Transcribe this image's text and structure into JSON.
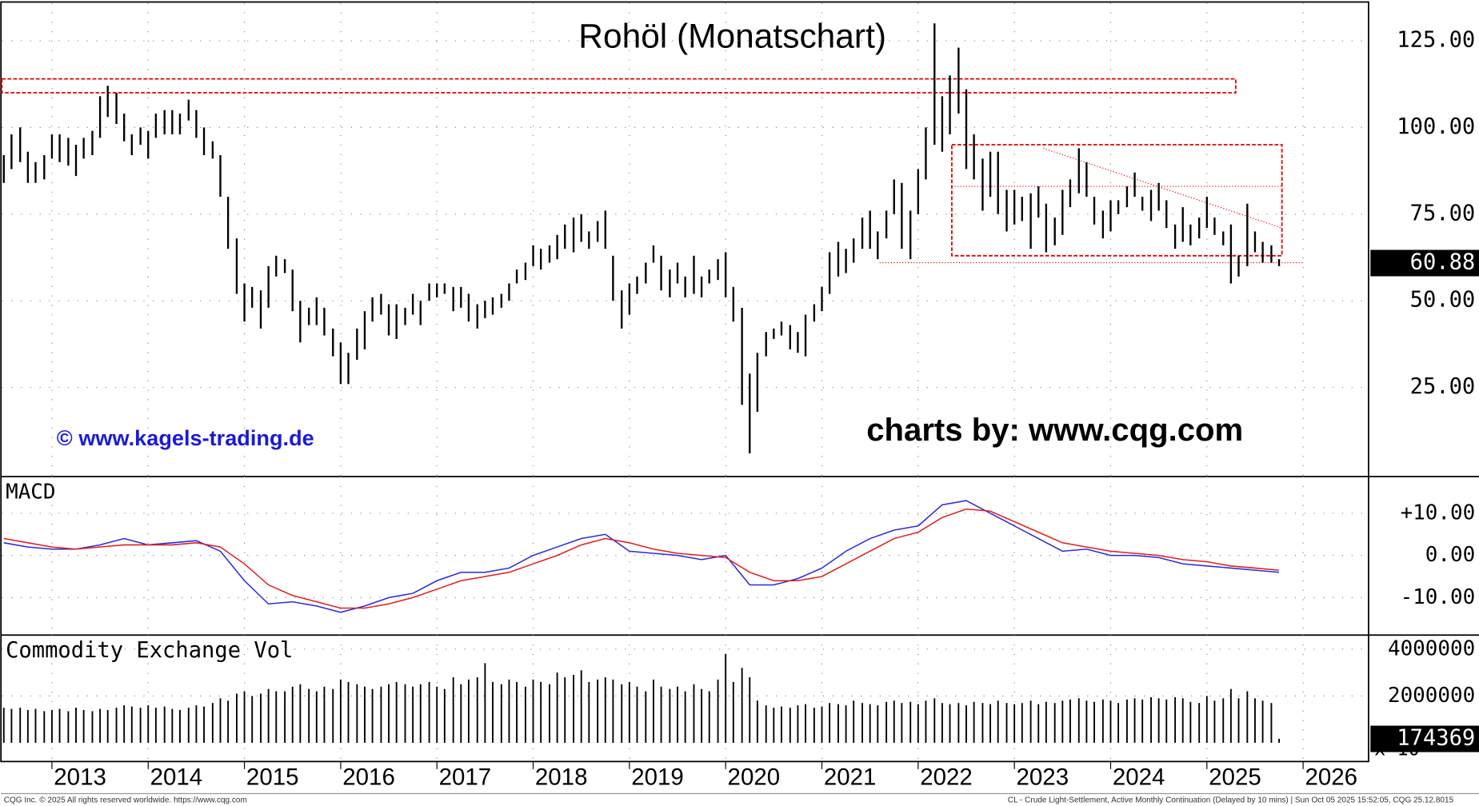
{
  "chart_data": [
    {
      "type": "ohlc",
      "title": "Rohöl (Monatschart)",
      "color": "#000000",
      "watermark": "© www.kagels-trading.de",
      "credit": "charts by: www.cqg.com",
      "xlim": [
        2012.48,
        2026.68
      ],
      "ylim": [
        -0.7,
        135.9
      ],
      "xticks": [
        2013,
        2014,
        2015,
        2016,
        2017,
        2018,
        2019,
        2020,
        2021,
        2022,
        2023,
        2024,
        2025,
        2026
      ],
      "yticks": [
        {
          "value": 25,
          "label": "25.00"
        },
        {
          "value": 50,
          "label": "50.00"
        },
        {
          "value": 75,
          "label": "75.00"
        },
        {
          "value": 100,
          "label": "100.00"
        },
        {
          "value": 125,
          "label": "125.00"
        }
      ],
      "grid": true,
      "last_value": 60.88,
      "zones": [
        {
          "x": [
            2012.48,
            2025.3
          ],
          "y": [
            110,
            114
          ]
        },
        {
          "x": [
            2022.35,
            2025.78
          ],
          "y": [
            63,
            95
          ]
        }
      ],
      "lines": [
        {
          "x": [
            2021.6,
            2026.0
          ],
          "y": [
            61,
            61
          ]
        },
        {
          "x": [
            2022.35,
            2025.78
          ],
          "y": [
            83,
            83
          ]
        },
        {
          "x": [
            2023.3,
            2025.78
          ],
          "y": [
            94,
            71
          ]
        }
      ],
      "x": [
        2012.5,
        2012.58,
        2012.67,
        2012.75,
        2012.83,
        2012.92,
        2013,
        2013.08,
        2013.17,
        2013.25,
        2013.33,
        2013.42,
        2013.5,
        2013.58,
        2013.67,
        2013.75,
        2013.83,
        2013.92,
        2014,
        2014.08,
        2014.17,
        2014.25,
        2014.33,
        2014.42,
        2014.5,
        2014.58,
        2014.67,
        2014.75,
        2014.83,
        2014.92,
        2015,
        2015.08,
        2015.17,
        2015.25,
        2015.33,
        2015.42,
        2015.5,
        2015.58,
        2015.67,
        2015.75,
        2015.83,
        2015.92,
        2016,
        2016.08,
        2016.17,
        2016.25,
        2016.33,
        2016.42,
        2016.5,
        2016.58,
        2016.67,
        2016.75,
        2016.83,
        2016.92,
        2017,
        2017.08,
        2017.17,
        2017.25,
        2017.33,
        2017.42,
        2017.5,
        2017.58,
        2017.67,
        2017.75,
        2017.83,
        2017.92,
        2018,
        2018.08,
        2018.17,
        2018.25,
        2018.33,
        2018.42,
        2018.5,
        2018.58,
        2018.67,
        2018.75,
        2018.83,
        2018.92,
        2019,
        2019.08,
        2019.17,
        2019.25,
        2019.33,
        2019.42,
        2019.5,
        2019.58,
        2019.67,
        2019.75,
        2019.83,
        2019.92,
        2020,
        2020.08,
        2020.17,
        2020.25,
        2020.33,
        2020.42,
        2020.5,
        2020.58,
        2020.67,
        2020.75,
        2020.83,
        2020.92,
        2021,
        2021.08,
        2021.17,
        2021.25,
        2021.33,
        2021.42,
        2021.5,
        2021.58,
        2021.67,
        2021.75,
        2021.83,
        2021.92,
        2022,
        2022.08,
        2022.17,
        2022.25,
        2022.33,
        2022.42,
        2022.5,
        2022.58,
        2022.67,
        2022.75,
        2022.83,
        2022.92,
        2023,
        2023.08,
        2023.17,
        2023.25,
        2023.33,
        2023.42,
        2023.5,
        2023.58,
        2023.67,
        2023.75,
        2023.83,
        2023.92,
        2024,
        2024.08,
        2024.17,
        2024.25,
        2024.33,
        2024.42,
        2024.5,
        2024.58,
        2024.67,
        2024.75,
        2024.83,
        2024.92,
        2025,
        2025.08,
        2025.17,
        2025.25,
        2025.33,
        2025.42,
        2025.5,
        2025.58,
        2025.67,
        2025.75
      ],
      "high": [
        92,
        98,
        100,
        93,
        90,
        92,
        98,
        98,
        97,
        95,
        97,
        99,
        109,
        112,
        110,
        104,
        98,
        100,
        99,
        104,
        105,
        105,
        104,
        108,
        105,
        100,
        96,
        92,
        80,
        68,
        55,
        54,
        53,
        60,
        63,
        62,
        59,
        50,
        48,
        51,
        48,
        42,
        38,
        35,
        42,
        47,
        51,
        52,
        49,
        49,
        48,
        52,
        50,
        55,
        55,
        55,
        54,
        54,
        52,
        49,
        50,
        51,
        52,
        55,
        59,
        61,
        66,
        65,
        66,
        69,
        72,
        74,
        75,
        70,
        73,
        76,
        63,
        53,
        55,
        57,
        61,
        66,
        63,
        59,
        61,
        57,
        63,
        57,
        59,
        62,
        64,
        54,
        48,
        29,
        35,
        41,
        42,
        44,
        43,
        41,
        46,
        49,
        54,
        64,
        67,
        65,
        68,
        74,
        76,
        70,
        76,
        85,
        84,
        76,
        88,
        100,
        130,
        109,
        115,
        123,
        111,
        98,
        91,
        93,
        93,
        82,
        82,
        80,
        81,
        83,
        78,
        74,
        82,
        85,
        94,
        90,
        80,
        76,
        79,
        79,
        83,
        87,
        80,
        82,
        84,
        79,
        72,
        77,
        72,
        74,
        80,
        74,
        70,
        72,
        63,
        78,
        70,
        67,
        66,
        62
      ],
      "low": [
        84,
        88,
        90,
        84,
        84,
        85,
        91,
        90,
        89,
        86,
        91,
        92,
        97,
        103,
        101,
        96,
        92,
        95,
        91,
        97,
        98,
        98,
        98,
        102,
        97,
        92,
        91,
        80,
        65,
        52,
        44,
        48,
        42,
        48,
        57,
        58,
        47,
        38,
        43,
        43,
        40,
        34,
        26,
        26,
        33,
        36,
        44,
        46,
        40,
        39,
        43,
        46,
        43,
        50,
        51,
        52,
        47,
        48,
        44,
        42,
        45,
        46,
        48,
        50,
        55,
        56,
        60,
        59,
        61,
        62,
        65,
        64,
        67,
        65,
        67,
        65,
        50,
        42,
        46,
        52,
        55,
        61,
        53,
        51,
        55,
        51,
        52,
        51,
        55,
        56,
        51,
        44,
        20,
        6,
        18,
        34,
        39,
        40,
        36,
        35,
        34,
        44,
        47,
        52,
        57,
        58,
        61,
        65,
        65,
        62,
        68,
        75,
        65,
        62,
        75,
        85,
        95,
        93,
        98,
        104,
        88,
        85,
        76,
        80,
        75,
        70,
        72,
        73,
        65,
        74,
        64,
        66,
        69,
        77,
        81,
        80,
        72,
        68,
        70,
        75,
        77,
        80,
        76,
        73,
        76,
        71,
        65,
        67,
        66,
        68,
        71,
        69,
        66,
        55,
        57,
        60,
        64,
        61,
        61,
        60
      ]
    },
    {
      "type": "line",
      "title": "MACD",
      "xlim": [
        2012.48,
        2026.68
      ],
      "ylim": [
        -18.9,
        18.7
      ],
      "xticks": [
        2013,
        2014,
        2015,
        2016,
        2017,
        2018,
        2019,
        2020,
        2021,
        2022,
        2023,
        2024,
        2025,
        2026
      ],
      "yticks": [
        {
          "value": -10,
          "label": "-10.00"
        },
        {
          "value": 0,
          "label": "0.00"
        },
        {
          "value": 10,
          "label": "+10.00"
        }
      ],
      "grid": true,
      "x": [
        2012.5,
        2012.75,
        2013,
        2013.25,
        2013.5,
        2013.75,
        2014,
        2014.25,
        2014.5,
        2014.75,
        2015,
        2015.25,
        2015.5,
        2015.75,
        2016,
        2016.25,
        2016.5,
        2016.75,
        2017,
        2017.25,
        2017.5,
        2017.75,
        2018,
        2018.25,
        2018.5,
        2018.75,
        2019,
        2019.25,
        2019.5,
        2019.75,
        2020,
        2020.25,
        2020.5,
        2020.75,
        2021,
        2021.25,
        2021.5,
        2021.75,
        2022,
        2022.25,
        2022.5,
        2022.75,
        2023,
        2023.25,
        2023.5,
        2023.75,
        2024,
        2024.25,
        2024.5,
        2024.75,
        2025,
        2025.25,
        2025.5,
        2025.75
      ],
      "series": [
        {
          "color": "#2b2bdc",
          "values": [
            3,
            2,
            1.5,
            1.5,
            2.5,
            4,
            2.5,
            3,
            3.5,
            1,
            -6,
            -11.5,
            -11,
            -12,
            -13.5,
            -12,
            -10,
            -9,
            -6,
            -4,
            -4,
            -3,
            0,
            2,
            4,
            5,
            1,
            0.5,
            0,
            -1,
            0,
            -7,
            -7,
            -5.5,
            -3,
            1,
            4,
            6,
            7,
            12,
            13,
            10,
            7,
            4,
            1,
            1.5,
            0,
            0,
            -0.5,
            -2,
            -2.5,
            -3,
            -3.5,
            -4
          ]
        },
        {
          "color": "#e02020",
          "values": [
            4,
            3,
            2,
            1.5,
            2,
            2.5,
            2.5,
            2.5,
            3,
            2,
            -2,
            -7,
            -9.5,
            -11,
            -12.5,
            -12.5,
            -11.5,
            -10,
            -8,
            -6,
            -5,
            -4,
            -2,
            0,
            2.5,
            4,
            3,
            1.5,
            0.5,
            0,
            -0.5,
            -4,
            -6,
            -6,
            -5,
            -2,
            1,
            4,
            5.5,
            9,
            11,
            10.5,
            8,
            5.5,
            3,
            2,
            1,
            0.5,
            0,
            -1,
            -1.5,
            -2.5,
            -3,
            -3.5
          ]
        }
      ]
    },
    {
      "type": "bar",
      "title": "Commodity Exchange Vol",
      "color": "#000000",
      "axis_note": "x 10",
      "xlim": [
        2012.48,
        2026.68
      ],
      "ylim": [
        -800000,
        4600000
      ],
      "xticks": [
        2013,
        2014,
        2015,
        2016,
        2017,
        2018,
        2019,
        2020,
        2021,
        2022,
        2023,
        2024,
        2025,
        2026
      ],
      "yticks": [
        2000000,
        4000000
      ],
      "grid": true,
      "last_value": 174369,
      "x": [
        2012.5,
        2012.58,
        2012.67,
        2012.75,
        2012.83,
        2012.92,
        2013,
        2013.08,
        2013.17,
        2013.25,
        2013.33,
        2013.42,
        2013.5,
        2013.58,
        2013.67,
        2013.75,
        2013.83,
        2013.92,
        2014,
        2014.08,
        2014.17,
        2014.25,
        2014.33,
        2014.42,
        2014.5,
        2014.58,
        2014.67,
        2014.75,
        2014.83,
        2014.92,
        2015,
        2015.08,
        2015.17,
        2015.25,
        2015.33,
        2015.42,
        2015.5,
        2015.58,
        2015.67,
        2015.75,
        2015.83,
        2015.92,
        2016,
        2016.08,
        2016.17,
        2016.25,
        2016.33,
        2016.42,
        2016.5,
        2016.58,
        2016.67,
        2016.75,
        2016.83,
        2016.92,
        2017,
        2017.08,
        2017.17,
        2017.25,
        2017.33,
        2017.42,
        2017.5,
        2017.58,
        2017.67,
        2017.75,
        2017.83,
        2017.92,
        2018,
        2018.08,
        2018.17,
        2018.25,
        2018.33,
        2018.42,
        2018.5,
        2018.58,
        2018.67,
        2018.75,
        2018.83,
        2018.92,
        2019,
        2019.08,
        2019.17,
        2019.25,
        2019.33,
        2019.42,
        2019.5,
        2019.58,
        2019.67,
        2019.75,
        2019.83,
        2019.92,
        2020,
        2020.08,
        2020.17,
        2020.25,
        2020.33,
        2020.42,
        2020.5,
        2020.58,
        2020.67,
        2020.75,
        2020.83,
        2020.92,
        2021,
        2021.08,
        2021.17,
        2021.25,
        2021.33,
        2021.42,
        2021.5,
        2021.58,
        2021.67,
        2021.75,
        2021.83,
        2021.92,
        2022,
        2022.08,
        2022.17,
        2022.25,
        2022.33,
        2022.42,
        2022.5,
        2022.58,
        2022.67,
        2022.75,
        2022.83,
        2022.92,
        2023,
        2023.08,
        2023.17,
        2023.25,
        2023.33,
        2023.42,
        2023.5,
        2023.58,
        2023.67,
        2023.75,
        2023.83,
        2023.92,
        2024,
        2024.08,
        2024.17,
        2024.25,
        2024.33,
        2024.42,
        2024.5,
        2024.58,
        2024.67,
        2024.75,
        2024.83,
        2024.92,
        2025,
        2025.08,
        2025.17,
        2025.25,
        2025.33,
        2025.42,
        2025.5,
        2025.58,
        2025.67,
        2025.75
      ],
      "values": [
        1500000,
        1450000,
        1500000,
        1400000,
        1450000,
        1350000,
        1400000,
        1450000,
        1350000,
        1500000,
        1400000,
        1350000,
        1450000,
        1400000,
        1500000,
        1600000,
        1550000,
        1500000,
        1600000,
        1500000,
        1550000,
        1450000,
        1400000,
        1500000,
        1600000,
        1550000,
        1700000,
        1900000,
        1800000,
        2100000,
        2200000,
        2000000,
        2100000,
        2300000,
        2200000,
        2200000,
        2400000,
        2500000,
        2300000,
        2200000,
        2400000,
        2300000,
        2700000,
        2600000,
        2500000,
        2400000,
        2300000,
        2400000,
        2500000,
        2600000,
        2500000,
        2400000,
        2500000,
        2600000,
        2400000,
        2300000,
        2800000,
        2500000,
        2700000,
        2800000,
        3400000,
        2600000,
        2500000,
        2700000,
        2600000,
        2400000,
        2700000,
        2600000,
        2500000,
        3000000,
        2800000,
        2900000,
        3100000,
        2600000,
        2700000,
        2800000,
        2700000,
        2500000,
        2600000,
        2400000,
        2200000,
        2700000,
        2400000,
        2300000,
        2400000,
        2200000,
        2500000,
        2300000,
        2200000,
        2700000,
        3800000,
        2600000,
        3200000,
        2800000,
        1800000,
        1600000,
        1500000,
        1550000,
        1500000,
        1600000,
        1650000,
        1500000,
        1550000,
        1700000,
        1650000,
        1600000,
        1800000,
        1700000,
        1650000,
        1600000,
        1750000,
        1800000,
        1700000,
        1750000,
        1650000,
        1800000,
        1900000,
        1700000,
        1650000,
        1700000,
        1600000,
        1750000,
        1700000,
        1650000,
        1800000,
        1700000,
        1650000,
        1700000,
        1800000,
        1650000,
        1750000,
        1700000,
        1800000,
        1850000,
        1900000,
        1800000,
        1750000,
        1850000,
        1800000,
        1700000,
        1850000,
        1900000,
        1850000,
        1950000,
        1900000,
        1850000,
        1950000,
        1900000,
        1750000,
        1700000,
        2000000,
        1800000,
        1900000,
        2300000,
        1900000,
        2200000,
        1900000,
        1800000,
        1700000,
        174369
      ]
    }
  ],
  "footer": {
    "left": "CQG Inc. © 2025 All rights reserved worldwide. https://www.cqg.com",
    "right": "CL - Crude Light-Settlement, Active Monthly Continuation (Delayed by 10 mins) | Sun Oct 05 2025 15:52:05, CQG 25.12.8015"
  }
}
